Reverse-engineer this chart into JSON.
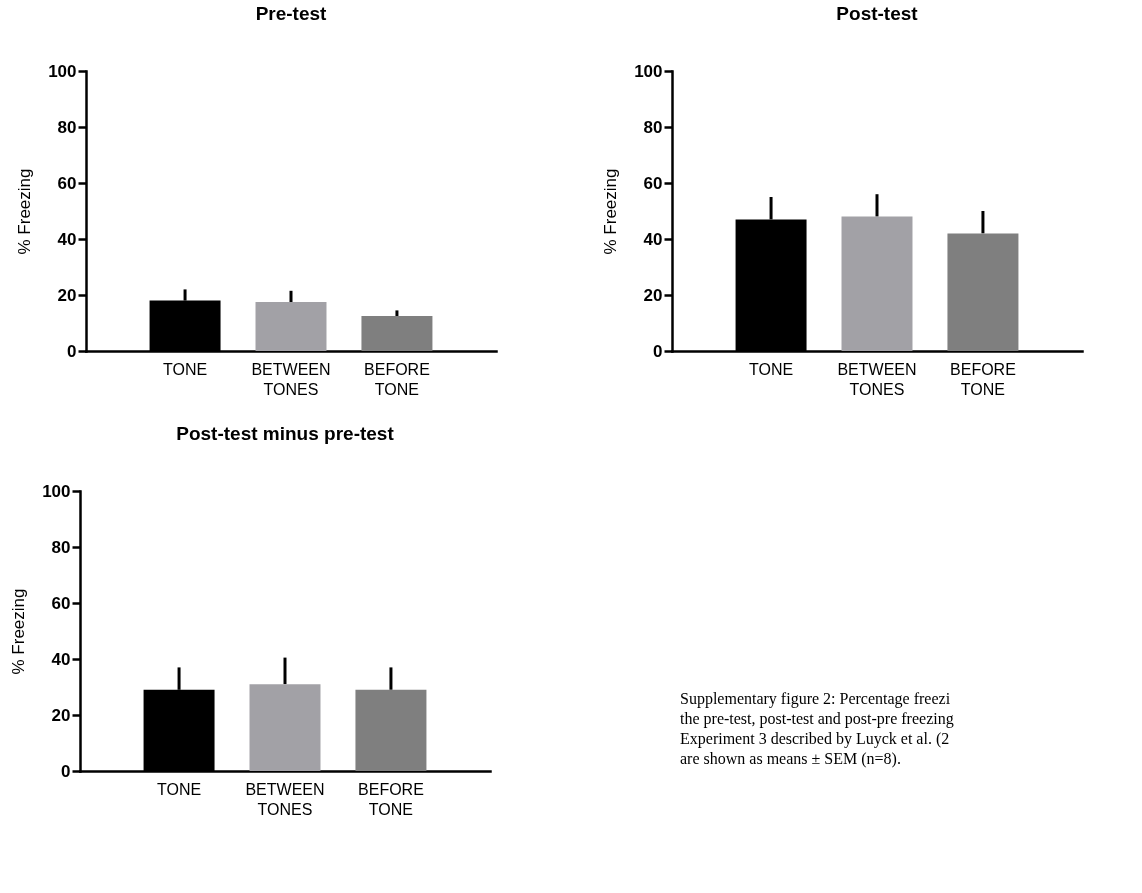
{
  "chart_data": [
    {
      "type": "bar",
      "title": "Pre-test",
      "ylabel": "% Freezing",
      "categories": [
        "TONE",
        "BETWEEN TONES",
        "BEFORE TONE"
      ],
      "values": [
        18,
        17.5,
        12.5
      ],
      "colors": [
        "#000000",
        "#a2a1a6",
        "#7f7f7f"
      ],
      "errors": [
        [
          18,
          22
        ],
        [
          17.5,
          21.5
        ],
        [
          12.5,
          14.5
        ]
      ],
      "ylim": [
        0,
        100
      ],
      "yticks": [
        0,
        20,
        40,
        60,
        80,
        100
      ]
    },
    {
      "type": "bar",
      "title": "Post-test",
      "ylabel": "% Freezing",
      "categories": [
        "TONE",
        "BETWEEN TONES",
        "BEFORE TONE"
      ],
      "values": [
        47,
        48,
        42
      ],
      "colors": [
        "#000000",
        "#a2a1a6",
        "#7f7f7f"
      ],
      "errors": [
        [
          47,
          55
        ],
        [
          48,
          56
        ],
        [
          42,
          50
        ]
      ],
      "ylim": [
        0,
        100
      ],
      "yticks": [
        0,
        20,
        40,
        60,
        80,
        100
      ]
    },
    {
      "type": "bar",
      "title": "Post-test minus pre-test",
      "ylabel": "% Freezing",
      "categories": [
        "TONE",
        "BETWEEN TONES",
        "BEFORE TONE"
      ],
      "values": [
        29,
        31,
        29
      ],
      "colors": [
        "#000000",
        "#a2a1a6",
        "#7f7f7f"
      ],
      "errors": [
        [
          29,
          37
        ],
        [
          31,
          40.5
        ],
        [
          29,
          37
        ]
      ],
      "ylim": [
        0,
        100
      ],
      "yticks": [
        0,
        20,
        40,
        60,
        80,
        100
      ],
      "annotations": [
        "Supplementary figure 2: Percentage freezi",
        "the pre-test, post-test and post-pre freezing",
        "Experiment 3 described by Luyck et al. (2",
        "are shown as means ± SEM (n=8)."
      ]
    }
  ]
}
